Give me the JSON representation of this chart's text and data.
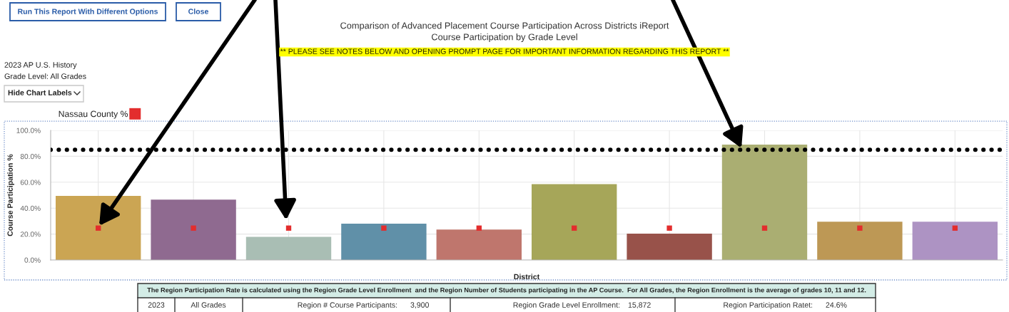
{
  "chart_data": {
    "type": "bar",
    "title": "Comparison of Advanced Placement Course Participation Across Districts iReport",
    "subtitle": "Course Participation by Grade Level",
    "xlabel": "District",
    "ylabel": "Course Participation %",
    "categories": [
      null,
      null,
      null,
      null,
      null,
      null,
      null,
      null,
      null,
      null
    ],
    "series": [
      {
        "colors": [
          "#cba553",
          "#8f6a90",
          "#a9beb4",
          "#6090a8",
          "#bf766d",
          "#a6a659",
          "#98524a",
          "#aaae72",
          "#bd9855",
          "#ad93c3"
        ],
        "values": [
          49.5,
          46.5,
          17.8,
          28,
          23.5,
          58.5,
          20.3,
          89,
          29.5,
          29.5
        ]
      },
      {
        "type": "scatter",
        "name": "Nassau County %",
        "color": "#e32d2d",
        "marker": "square",
        "values": [
          24.6,
          24.6,
          24.6,
          24.6,
          24.6,
          24.6,
          24.6,
          24.6,
          24.6,
          24.6
        ]
      }
    ],
    "ylim": [
      0,
      100
    ],
    "yticks": [
      {
        "value": 0,
        "label": "0.0%"
      },
      {
        "value": 20,
        "label": "20.0%"
      },
      {
        "value": 40,
        "label": "40.0%"
      },
      {
        "value": 60,
        "label": "60.0%"
      },
      {
        "value": 80,
        "label": "80.0%"
      },
      {
        "value": 100,
        "label": "100.0%"
      }
    ],
    "grid": true,
    "legend": "top left",
    "tick_labels": "y",
    "ref_lines": [
      {
        "axis": "y",
        "value": 85,
        "color": "#000000",
        "line_style": "dotted"
      }
    ],
    "annotations": [
      "** PLEASE SEE NOTES BELOW AND OPENING PROMPT PAGE FOR IMPORTANT INFORMATION REGARDING THIS REPORT **",
      "2023 AP U.S. History",
      "Grade Level: All Grades",
      "Run This Report With Different Options",
      "Close",
      "Hide Chart Labels",
      "The Region Participation Rate is calculated using the Region Grade Level Enrollment  and the Region Number of Students participating in the AP Course.  For All Grades, the Region Enrollment is the average of grades 10, 11 and 12.",
      "2023",
      "All Grades",
      "Region # Course Participants:",
      "3,900",
      "Region Grade Level Enrollment:",
      "15,872",
      "Region Participation Ratet:",
      "24.6%"
    ]
  }
}
